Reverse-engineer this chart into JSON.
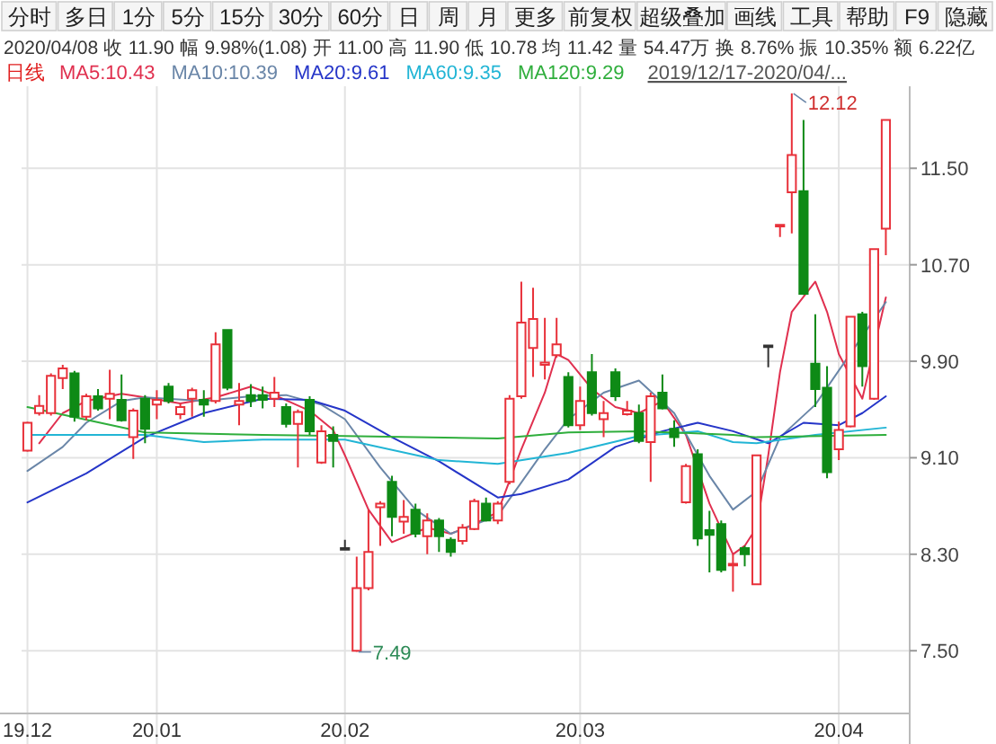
{
  "chart_data": {
    "type": "candlestick",
    "subtitle": "2020/04/08 收 11.90 幅 9.98%(1.08) 开 11.00 高 11.90 低 10.78 均 11.42 量 54.47万 换 8.76% 振 10.35% 额 6.22亿",
    "legend_title": "日线",
    "annotations": [
      "分时",
      "多日",
      "1分",
      "5分",
      "15分",
      "30分",
      "60分",
      "日",
      "周",
      "月",
      "更多",
      "前复权",
      "超级叠加",
      "画线",
      "工具",
      "帮助",
      "F9",
      "隐藏",
      "2019/12/17-2020/04/...",
      "12.12",
      "7.49"
    ],
    "categories": [
      "19.12",
      null,
      null,
      null,
      null,
      null,
      null,
      null,
      null,
      null,
      null,
      "20.01",
      null,
      null,
      null,
      null,
      null,
      null,
      null,
      null,
      null,
      null,
      null,
      null,
      null,
      null,
      null,
      "20.02",
      null,
      null,
      null,
      null,
      null,
      null,
      null,
      null,
      null,
      null,
      null,
      null,
      null,
      null,
      null,
      null,
      null,
      null,
      null,
      "20.03",
      null,
      null,
      null,
      null,
      null,
      null,
      null,
      null,
      null,
      null,
      null,
      null,
      null,
      null,
      null,
      null,
      null,
      null,
      null,
      null,
      null,
      "20.04",
      null,
      null,
      null,
      null
    ],
    "ohlc": [
      [
        9.16,
        9.4,
        9.15,
        9.39
      ],
      [
        9.47,
        9.62,
        9.45,
        9.53
      ],
      [
        9.47,
        9.8,
        9.45,
        9.78
      ],
      [
        9.76,
        9.87,
        9.67,
        9.84
      ],
      [
        9.8,
        9.82,
        9.4,
        9.44
      ],
      [
        9.44,
        9.63,
        9.41,
        9.61
      ],
      [
        9.61,
        9.67,
        9.49,
        9.51
      ],
      [
        9.59,
        9.83,
        9.42,
        9.63
      ],
      [
        9.58,
        9.79,
        9.4,
        9.41
      ],
      [
        9.27,
        9.51,
        9.09,
        9.49
      ],
      [
        9.59,
        9.62,
        9.22,
        9.34
      ],
      [
        9.54,
        9.66,
        9.42,
        9.58
      ],
      [
        9.69,
        9.72,
        9.55,
        9.57
      ],
      [
        9.46,
        9.55,
        9.42,
        9.52
      ],
      [
        9.59,
        9.68,
        9.44,
        9.66
      ],
      [
        9.58,
        9.66,
        9.44,
        9.54
      ],
      [
        9.57,
        10.14,
        9.55,
        10.04
      ],
      [
        10.16,
        10.16,
        9.66,
        9.68
      ],
      [
        9.54,
        9.72,
        9.37,
        9.57
      ],
      [
        9.62,
        9.71,
        9.52,
        9.57
      ],
      [
        9.62,
        9.69,
        9.51,
        9.58
      ],
      [
        9.59,
        9.77,
        9.52,
        9.64
      ],
      [
        9.52,
        9.55,
        9.35,
        9.38
      ],
      [
        9.38,
        9.5,
        9.02,
        9.48
      ],
      [
        9.58,
        9.61,
        9.29,
        9.32
      ],
      [
        9.06,
        9.37,
        9.05,
        9.32
      ],
      [
        9.29,
        9.36,
        9.02,
        9.24
      ],
      [
        8.35,
        8.42,
        8.35,
        8.35
      ],
      [
        7.5,
        8.28,
        7.49,
        8.02
      ],
      [
        8.02,
        8.67,
        8.0,
        8.32
      ],
      [
        8.69,
        8.74,
        8.37,
        8.72
      ],
      [
        8.9,
        8.95,
        8.45,
        8.61
      ],
      [
        8.57,
        8.75,
        8.47,
        8.61
      ],
      [
        8.67,
        8.72,
        8.44,
        8.47
      ],
      [
        8.45,
        8.64,
        8.3,
        8.58
      ],
      [
        8.58,
        8.6,
        8.32,
        8.45
      ],
      [
        8.42,
        8.44,
        8.28,
        8.32
      ],
      [
        8.41,
        8.55,
        8.38,
        8.52
      ],
      [
        8.51,
        8.76,
        8.5,
        8.74
      ],
      [
        8.72,
        8.77,
        8.57,
        8.58
      ],
      [
        8.58,
        8.74,
        8.55,
        8.72
      ],
      [
        8.9,
        9.62,
        8.88,
        9.59
      ],
      [
        9.61,
        10.56,
        9.59,
        10.22
      ],
      [
        10.01,
        10.51,
        9.77,
        10.25
      ],
      [
        9.87,
        10.26,
        9.75,
        9.89
      ],
      [
        9.95,
        10.26,
        9.93,
        10.04
      ],
      [
        9.77,
        9.81,
        9.35,
        9.37
      ],
      [
        9.37,
        9.69,
        9.33,
        9.57
      ],
      [
        9.81,
        9.96,
        9.45,
        9.47
      ],
      [
        9.42,
        9.57,
        9.27,
        9.47
      ],
      [
        9.81,
        9.84,
        9.57,
        9.61
      ],
      [
        9.46,
        9.57,
        9.45,
        9.49
      ],
      [
        9.47,
        9.54,
        9.22,
        9.24
      ],
      [
        9.23,
        9.64,
        8.9,
        9.61
      ],
      [
        9.64,
        9.79,
        9.5,
        9.51
      ],
      [
        9.34,
        9.41,
        9.19,
        9.27
      ],
      [
        8.73,
        9.05,
        8.72,
        9.03
      ],
      [
        9.13,
        9.17,
        8.37,
        8.43
      ],
      [
        8.5,
        8.66,
        8.15,
        8.46
      ],
      [
        8.55,
        8.58,
        8.15,
        8.17
      ],
      [
        8.21,
        8.3,
        7.99,
        8.22
      ],
      [
        8.35,
        8.37,
        8.2,
        8.3
      ],
      [
        8.05,
        9.12,
        8.05,
        9.12
      ],
      [
        10.03,
        10.03,
        9.85,
        10.03
      ],
      [
        11.03,
        11.03,
        10.93,
        11.03
      ],
      [
        11.3,
        12.12,
        10.96,
        11.61
      ],
      [
        11.31,
        11.9,
        10.45,
        10.46
      ],
      [
        9.88,
        10.29,
        9.52,
        9.67
      ],
      [
        9.68,
        9.86,
        8.93,
        8.98
      ],
      [
        9.17,
        9.4,
        9.08,
        9.33
      ],
      [
        9.36,
        10.27,
        9.35,
        10.27
      ],
      [
        10.29,
        10.31,
        9.69,
        9.86
      ],
      [
        9.59,
        10.83,
        9.58,
        10.83
      ],
      [
        11.0,
        11.9,
        10.78,
        11.9
      ]
    ],
    "colors": [
      "#e8313a",
      "#e8313a",
      "#e8313a",
      "#e8313a",
      "#0e8a16",
      "#e8313a",
      "#0e8a16",
      "#e8313a",
      "#0e8a16",
      "#e8313a",
      "#0e8a16",
      "#e8313a",
      "#0e8a16",
      "#e8313a",
      "#e8313a",
      "#0e8a16",
      "#e8313a",
      "#0e8a16",
      "#e8313a",
      "#0e8a16",
      "#0e8a16",
      "#e8313a",
      "#0e8a16",
      "#e8313a",
      "#0e8a16",
      "#e8313a",
      "#0e8a16",
      "#333333",
      "#e8313a",
      "#e8313a",
      "#e8313a",
      "#0e8a16",
      "#e8313a",
      "#0e8a16",
      "#e8313a",
      "#0e8a16",
      "#0e8a16",
      "#e8313a",
      "#e8313a",
      "#0e8a16",
      "#e8313a",
      "#e8313a",
      "#e8313a",
      "#e8313a",
      "#e8313a",
      "#e8313a",
      "#0e8a16",
      "#e8313a",
      "#0e8a16",
      "#e8313a",
      "#0e8a16",
      "#e8313a",
      "#0e8a16",
      "#e8313a",
      "#0e8a16",
      "#0e8a16",
      "#e8313a",
      "#0e8a16",
      "#0e8a16",
      "#0e8a16",
      "#e8313a",
      "#0e8a16",
      "#e8313a",
      "#333333",
      "#e8313a",
      "#e8313a",
      "#0e8a16",
      "#0e8a16",
      "#0e8a16",
      "#e8313a",
      "#e8313a",
      "#0e8a16",
      "#e8313a",
      "#e8313a"
    ],
    "series": [
      {
        "name": "MA5:10.43",
        "type": "line",
        "color": "#e0304f",
        "values": [
          null,
          9.22,
          null,
          9.47,
          null,
          9.57,
          null,
          null,
          9.63,
          null,
          9.6,
          null,
          null,
          9.55,
          null,
          null,
          9.6,
          null,
          null,
          9.69,
          null,
          9.62,
          null,
          null,
          9.49,
          null,
          9.33,
          9.12,
          null,
          8.67,
          null,
          8.4,
          null,
          null,
          8.52,
          null,
          8.47,
          null,
          8.55,
          null,
          8.65,
          null,
          9.17,
          null,
          9.64,
          9.96,
          9.91,
          null,
          9.67,
          null,
          9.52,
          null,
          9.47,
          null,
          9.57,
          null,
          9.29,
          null,
          8.72,
          null,
          8.3,
          8.37,
          8.52,
          9.12,
          9.81,
          10.31,
          null,
          10.56,
          10.31,
          9.96,
          null,
          9.59,
          null,
          10.43
        ]
      },
      {
        "name": "MA10:10.39",
        "type": "line",
        "color": "#6a86a8",
        "values": [
          8.99,
          null,
          null,
          9.19,
          null,
          9.39,
          null,
          null,
          9.57,
          null,
          9.6,
          null,
          null,
          null,
          null,
          9.57,
          null,
          null,
          null,
          9.61,
          null,
          null,
          9.62,
          null,
          null,
          9.54,
          null,
          9.42,
          null,
          null,
          9.02,
          null,
          null,
          8.67,
          null,
          null,
          8.47,
          null,
          null,
          null,
          8.62,
          null,
          null,
          null,
          9.17,
          null,
          9.42,
          null,
          null,
          9.64,
          null,
          null,
          9.74,
          null,
          null,
          9.47,
          null,
          null,
          8.95,
          null,
          8.67,
          null,
          8.82,
          null,
          9.27,
          null,
          null,
          9.54,
          null,
          null,
          null,
          null,
          null,
          10.39
        ]
      },
      {
        "name": "MA20:9.61",
        "type": "line",
        "color": "#2535c8",
        "values": [
          8.73,
          null,
          null,
          null,
          null,
          8.97,
          null,
          null,
          null,
          null,
          9.27,
          null,
          null,
          null,
          null,
          9.47,
          null,
          null,
          null,
          null,
          9.59,
          null,
          null,
          null,
          9.58,
          null,
          null,
          9.49,
          null,
          null,
          null,
          9.27,
          null,
          null,
          null,
          9.07,
          null,
          null,
          null,
          null,
          8.77,
          null,
          8.8,
          null,
          null,
          null,
          8.92,
          null,
          null,
          null,
          9.19,
          null,
          null,
          null,
          9.32,
          null,
          null,
          9.39,
          null,
          null,
          9.32,
          null,
          null,
          9.22,
          null,
          null,
          9.39,
          null,
          null,
          9.37,
          null,
          9.47,
          null,
          9.61
        ]
      },
      {
        "name": "MA60:9.35",
        "type": "line",
        "color": "#22b5d5",
        "values": [
          9.29,
          null,
          null,
          null,
          null,
          null,
          null,
          null,
          null,
          null,
          9.29,
          null,
          null,
          null,
          null,
          9.23,
          null,
          null,
          null,
          null,
          9.25,
          null,
          9.25,
          null,
          null,
          null,
          null,
          9.25,
          null,
          null,
          null,
          null,
          null,
          null,
          null,
          9.08,
          null,
          null,
          null,
          null,
          9.05,
          null,
          null,
          null,
          null,
          null,
          9.14,
          null,
          null,
          null,
          null,
          null,
          9.28,
          null,
          null,
          null,
          null,
          9.32,
          null,
          null,
          9.23,
          null,
          9.22,
          null,
          null,
          null,
          null,
          9.29,
          null,
          null,
          null,
          null,
          null,
          9.35
        ]
      },
      {
        "name": "MA120:9.29",
        "type": "line",
        "color": "#2fae3c",
        "values": [
          9.52,
          null,
          null,
          null,
          null,
          null,
          null,
          null,
          null,
          null,
          9.31,
          null,
          null,
          null,
          null,
          null,
          null,
          null,
          null,
          null,
          9.29,
          null,
          null,
          null,
          null,
          null,
          null,
          9.28,
          null,
          null,
          null,
          null,
          null,
          null,
          null,
          null,
          null,
          null,
          null,
          null,
          9.26,
          null,
          null,
          null,
          null,
          null,
          9.31,
          null,
          null,
          null,
          null,
          null,
          9.32,
          null,
          null,
          null,
          null,
          null,
          null,
          null,
          9.29,
          null,
          9.27,
          null,
          null,
          null,
          null,
          null,
          null,
          null,
          null,
          null,
          null,
          9.29
        ]
      }
    ],
    "ylim": [
      6.98,
      12.18
    ],
    "yticks": [
      {
        "value": 7.5,
        "label": "7.50"
      },
      {
        "value": 8.3,
        "label": "8.30"
      },
      {
        "value": 9.1,
        "label": "9.10"
      },
      {
        "value": 9.9,
        "label": "9.90"
      },
      {
        "value": 10.7,
        "label": "10.70"
      },
      {
        "value": 11.5,
        "label": "11.50"
      }
    ],
    "grid": true,
    "legend": "top"
  }
}
